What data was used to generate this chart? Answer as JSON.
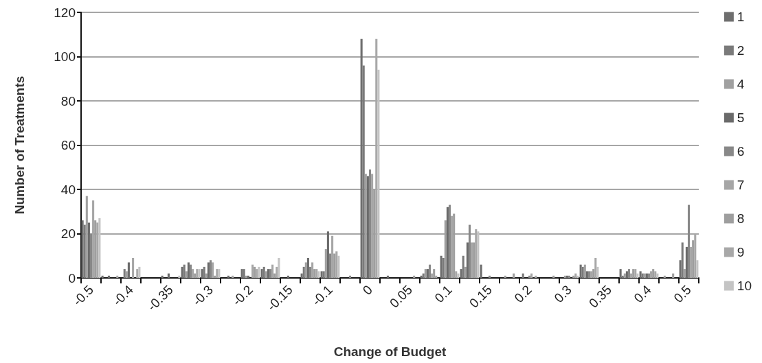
{
  "chart_data": {
    "type": "bar",
    "xlabel": "Change of Budget",
    "ylabel": "Number of Treatments",
    "categories": [
      "-0.5",
      null,
      "-0.4",
      null,
      "-0.35",
      null,
      "-0.3",
      null,
      "-0.2",
      null,
      "-0.15",
      null,
      "-0.1",
      null,
      "0",
      null,
      "0.05",
      null,
      "0.1",
      null,
      "0.15",
      null,
      "0.2",
      null,
      "0.3",
      null,
      "0.35",
      null,
      "0.4",
      null,
      "0.5"
    ],
    "series": [
      {
        "name": "1",
        "color": "#6e6e6e",
        "values": [
          26,
          1,
          0,
          0,
          1,
          5,
          4,
          0,
          4,
          4,
          0,
          2,
          3,
          0,
          108,
          0,
          0,
          1,
          10,
          4,
          6,
          0,
          0,
          0,
          0,
          6,
          0,
          4,
          3,
          0,
          8
        ]
      },
      {
        "name": "2",
        "color": "#7a7a7a",
        "values": [
          24,
          0,
          4,
          0,
          0,
          6,
          5,
          0,
          4,
          5,
          0,
          5,
          3,
          0,
          96,
          0,
          0,
          2,
          9,
          10,
          0,
          0,
          2,
          0,
          0,
          5,
          0,
          1,
          2,
          0,
          16
        ]
      },
      {
        "name": "4",
        "color": "#a0a0a0",
        "values": [
          37,
          0,
          3,
          0,
          0,
          3,
          2,
          0,
          1,
          3,
          0,
          7,
          13,
          0,
          47,
          0,
          0,
          4,
          26,
          5,
          0,
          1,
          0,
          0,
          1,
          6,
          0,
          2,
          2,
          1,
          4
        ]
      },
      {
        "name": "5",
        "color": "#6a6a6a",
        "values": [
          25,
          1,
          7,
          0,
          2,
          7,
          7,
          1,
          1,
          4,
          1,
          9,
          21,
          0,
          46,
          1,
          0,
          4,
          32,
          16,
          0,
          0,
          0,
          0,
          1,
          3,
          0,
          3,
          2,
          0,
          14
        ]
      },
      {
        "name": "6",
        "color": "#888888",
        "values": [
          20,
          0,
          0,
          0,
          0,
          6,
          8,
          0,
          0,
          4,
          0,
          5,
          11,
          1,
          49,
          0,
          0,
          6,
          33,
          24,
          1,
          0,
          1,
          0,
          1,
          3,
          0,
          4,
          2,
          0,
          33
        ]
      },
      {
        "name": "7",
        "color": "#a6a6a6",
        "values": [
          35,
          0,
          9,
          0,
          0,
          4,
          7,
          1,
          6,
          6,
          0,
          7,
          19,
          0,
          47,
          0,
          0,
          2,
          28,
          16,
          0,
          0,
          2,
          0,
          0,
          3,
          0,
          2,
          3,
          0,
          14
        ]
      },
      {
        "name": "8",
        "color": "#9e9e9e",
        "values": [
          26,
          0,
          0,
          0,
          0,
          2,
          1,
          0,
          5,
          2,
          0,
          4,
          11,
          0,
          40,
          0,
          1,
          4,
          29,
          16,
          0,
          2,
          0,
          1,
          1,
          4,
          0,
          4,
          4,
          2,
          17
        ]
      },
      {
        "name": "9",
        "color": "#a8a8a8",
        "values": [
          25,
          1,
          4,
          0,
          0,
          4,
          4,
          0,
          4,
          5,
          0,
          4,
          12,
          0,
          108,
          0,
          0,
          1,
          3,
          22,
          0,
          0,
          1,
          0,
          2,
          9,
          0,
          4,
          3,
          0,
          20
        ]
      },
      {
        "name": "10",
        "color": "#c4c4c4",
        "values": [
          27,
          0,
          5,
          0,
          1,
          4,
          4,
          0,
          5,
          9,
          0,
          3,
          10,
          0,
          94,
          0,
          0,
          0,
          2,
          21,
          0,
          0,
          0,
          0,
          1,
          5,
          0,
          2,
          2,
          0,
          8
        ]
      }
    ],
    "ylim": [
      0,
      120
    ],
    "yticks": [
      0,
      20,
      40,
      60,
      80,
      100,
      120
    ],
    "grid": "y",
    "legend": "right"
  }
}
